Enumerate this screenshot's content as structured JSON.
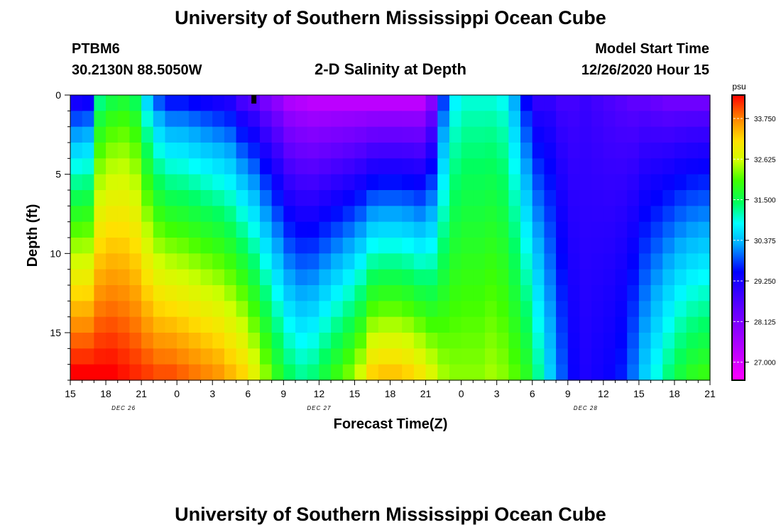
{
  "chart_data": {
    "type": "heatmap",
    "title": "University of Southern Mississippi Ocean Cube",
    "footer_title": "University of Southern Mississippi Ocean Cube",
    "station": "PTBM6",
    "location": "30.2130N 88.5050W",
    "subtitle": "2-D Salinity at Depth",
    "model_start_label": "Model Start Time",
    "model_start_value": "12/26/2020 Hour 15",
    "xlabel": "Forecast Time(Z)",
    "ylabel": "Depth (ft)",
    "x_ticks": [
      "15",
      "18",
      "21",
      "0",
      "3",
      "6",
      "9",
      "12",
      "15",
      "18",
      "21",
      "0",
      "3",
      "6",
      "9",
      "12",
      "15",
      "18",
      "21"
    ],
    "x_range_hours": [
      0,
      54
    ],
    "y_ticks": [
      "0",
      "5",
      "10",
      "15"
    ],
    "y_tick_values": [
      0,
      5,
      10,
      15
    ],
    "y_range_ft": [
      0,
      18
    ],
    "date_labels": [
      {
        "text": "DEC 26",
        "hour": 4.5
      },
      {
        "text": "DEC 27",
        "hour": 21
      },
      {
        "text": "DEC 28",
        "hour": 43.5
      }
    ],
    "colorbar": {
      "unit": "psu",
      "ticks": [
        "33.750",
        "32.625",
        "31.500",
        "30.375",
        "29.250",
        "28.125",
        "27.000"
      ],
      "tick_values": [
        33.75,
        32.625,
        31.5,
        30.375,
        29.25,
        28.125,
        27.0
      ],
      "range": [
        26.5,
        34.4
      ]
    },
    "marker_hour": 15.5,
    "grid": {
      "cols": 54,
      "rows": 18
    },
    "surface_salinity_by_hour": [
      29.3,
      29.4,
      31.3,
      31.6,
      31.7,
      31.5,
      30.6,
      29.9,
      29.6,
      29.6,
      29.5,
      29.4,
      29.3,
      29.2,
      28.8,
      28.6,
      28.2,
      27.9,
      27.5,
      27.4,
      27.3,
      27.3,
      27.3,
      27.3,
      27.3,
      27.3,
      27.3,
      27.3,
      27.3,
      27.3,
      28.0,
      29.8,
      30.8,
      31.0,
      31.0,
      31.0,
      30.9,
      30.3,
      29.5,
      29.0,
      29.0,
      28.8,
      28.8,
      28.9,
      28.8,
      28.7,
      28.6,
      28.5,
      28.5,
      28.4,
      28.3,
      28.3,
      28.3,
      28.3
    ],
    "bottom_salinity_by_hour": [
      34.4,
      34.4,
      34.4,
      34.4,
      34.3,
      34.2,
      34.1,
      34.0,
      34.0,
      33.9,
      33.8,
      33.7,
      33.6,
      33.4,
      33.2,
      32.8,
      32.3,
      31.8,
      31.4,
      31.2,
      31.3,
      31.6,
      31.9,
      32.2,
      32.6,
      33.2,
      33.3,
      33.3,
      33.2,
      33.0,
      32.7,
      32.4,
      32.3,
      32.3,
      32.3,
      32.4,
      32.3,
      32.1,
      31.8,
      31.2,
      30.5,
      29.9,
      29.4,
      29.2,
      29.3,
      29.4,
      29.6,
      30.0,
      30.5,
      30.9,
      31.3,
      31.6,
      31.8,
      31.9
    ]
  }
}
